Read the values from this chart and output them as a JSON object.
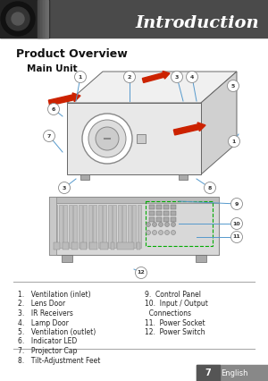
{
  "title": "Introduction",
  "section_title": "Product Overview",
  "sub_title": "Main Unit",
  "bg_color": "#ffffff",
  "header_bg": "#4a4a4a",
  "header_text_color": "#ffffff",
  "footer_bg": "#888888",
  "footer_text": "English",
  "footer_num": "7",
  "list_left": [
    "1. Ventilation (inlet)",
    "2. Lens Door",
    "3. IR Receivers",
    "4. Lamp Door",
    "5. Ventilation (outlet)",
    "6. Indicator LED",
    "7. Projector Cap",
    "8. Tilt-Adjustment Feet"
  ],
  "list_right": [
    "9. Control Panel",
    "10. Input / Output",
    "       Connections",
    "11. Power Socket",
    "12. Power Switch"
  ],
  "separator_color": "#aaaaaa",
  "callout_circle_color": "#cccccc",
  "callout_line_color": "#5599cc",
  "projector_body": "#e8e8e8",
  "projector_dark": "#aaaaaa",
  "red_arrow": "#cc2200",
  "green_dashed": "#00aa00"
}
